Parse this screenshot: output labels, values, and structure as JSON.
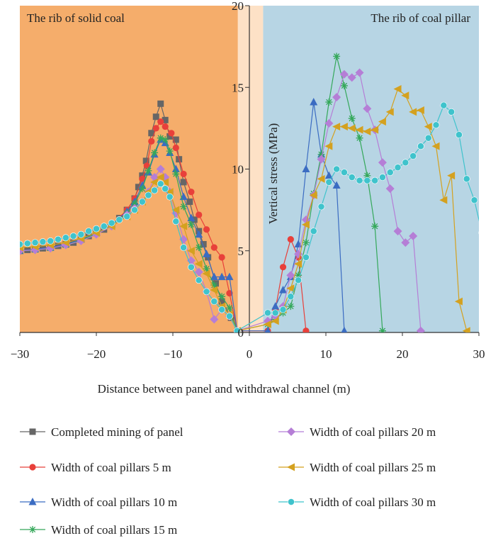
{
  "chart_data": {
    "type": "line",
    "title": "",
    "xlabel": "Distance between panel and withdrawal channel (m)",
    "ylabel": "Vertical stress (MPa)",
    "xlim": [
      -30,
      30
    ],
    "ylim": [
      0,
      20
    ],
    "xticks": [
      -30,
      -20,
      -10,
      0,
      10,
      20,
      30
    ],
    "yticks": [
      0,
      5,
      10,
      15,
      20
    ],
    "regions": [
      {
        "label": "The rib of solid coal",
        "x_range": [
          -30,
          -1.5
        ],
        "color": "#f5ad6b"
      },
      {
        "label": "",
        "x_range": [
          -1.5,
          1.8
        ],
        "color": "#fde1c6"
      },
      {
        "label": "The rib of coal pillar",
        "x_range": [
          1.8,
          30
        ],
        "color": "#b7d5e4"
      }
    ],
    "grid": false,
    "legend_position": "bottom, two columns",
    "series": [
      {
        "name": "Completed mining of panel",
        "color": "#666666",
        "marker": "square",
        "points": [
          [
            -30,
            5.0
          ],
          [
            -29,
            5.05
          ],
          [
            -28,
            5.1
          ],
          [
            -27,
            5.15
          ],
          [
            -26,
            5.2
          ],
          [
            -25,
            5.3
          ],
          [
            -24,
            5.4
          ],
          [
            -23,
            5.5
          ],
          [
            -22,
            5.7
          ],
          [
            -21,
            5.9
          ],
          [
            -20,
            6.1
          ],
          [
            -19,
            6.3
          ],
          [
            -18,
            6.6
          ],
          [
            -17,
            7.0
          ],
          [
            -16,
            7.5
          ],
          [
            -15,
            8.2
          ],
          [
            -14.5,
            8.9
          ],
          [
            -14,
            9.6
          ],
          [
            -13.5,
            10.5
          ],
          [
            -12.8,
            12.2
          ],
          [
            -12.2,
            13.2
          ],
          [
            -11.6,
            14.0
          ],
          [
            -11,
            13.0
          ],
          [
            -10.4,
            12.0
          ],
          [
            -9.6,
            11.8
          ],
          [
            -9.2,
            10.6
          ],
          [
            -8.6,
            9.2
          ],
          [
            -7.8,
            8.0
          ],
          [
            -7.2,
            6.9
          ],
          [
            -6.6,
            6.2
          ],
          [
            -6,
            5.4
          ],
          [
            -5.4,
            4.6
          ],
          [
            -4.4,
            3.0
          ],
          [
            -3.6,
            1.9
          ],
          [
            -2.4,
            0.9
          ],
          [
            -1.5,
            0.1
          ]
        ]
      },
      {
        "name": "Width of coal pillars 5 m",
        "color": "#e8403a",
        "marker": "circle",
        "points": [
          [
            -30,
            5.0
          ],
          [
            -28,
            5.1
          ],
          [
            -26,
            5.2
          ],
          [
            -24,
            5.4
          ],
          [
            -22,
            5.7
          ],
          [
            -20,
            6.1
          ],
          [
            -18,
            6.6
          ],
          [
            -16,
            7.5
          ],
          [
            -15,
            8.2
          ],
          [
            -14,
            9.4
          ],
          [
            -13.4,
            10.2
          ],
          [
            -12.8,
            11.7
          ],
          [
            -12.2,
            12.5
          ],
          [
            -11.6,
            12.9
          ],
          [
            -11,
            12.6
          ],
          [
            -10.2,
            12.2
          ],
          [
            -9.6,
            11.3
          ],
          [
            -8.6,
            9.7
          ],
          [
            -7.6,
            8.6
          ],
          [
            -6.6,
            7.2
          ],
          [
            -5.6,
            6.3
          ],
          [
            -4.6,
            5.2
          ],
          [
            -3.6,
            4.6
          ],
          [
            -2.6,
            2.4
          ],
          [
            -1.6,
            0.1
          ],
          [
            2.4,
            0.1
          ],
          [
            3.4,
            1.4
          ],
          [
            4.4,
            4.0
          ],
          [
            5.4,
            5.7
          ],
          [
            6.4,
            4.6
          ],
          [
            7.4,
            0.1
          ]
        ]
      },
      {
        "name": "Width of coal pillars 10 m",
        "color": "#3b6cc2",
        "marker": "triangle-up",
        "points": [
          [
            -30,
            5.0
          ],
          [
            -28,
            5.1
          ],
          [
            -26,
            5.2
          ],
          [
            -24,
            5.4
          ],
          [
            -22,
            5.7
          ],
          [
            -20,
            6.1
          ],
          [
            -18,
            6.6
          ],
          [
            -16,
            7.4
          ],
          [
            -15,
            8.0
          ],
          [
            -14,
            9.0
          ],
          [
            -13.2,
            9.8
          ],
          [
            -12.4,
            10.9
          ],
          [
            -11.6,
            11.8
          ],
          [
            -11,
            11.6
          ],
          [
            -10.4,
            11.0
          ],
          [
            -9.6,
            10.0
          ],
          [
            -8.6,
            8.3
          ],
          [
            -7.6,
            7.0
          ],
          [
            -6.6,
            6.0
          ],
          [
            -5.6,
            4.8
          ],
          [
            -4.6,
            3.4
          ],
          [
            -3.6,
            3.4
          ],
          [
            -2.6,
            3.4
          ],
          [
            -1.6,
            0.1
          ],
          [
            2.4,
            0.1
          ],
          [
            3.4,
            1.6
          ],
          [
            4.4,
            2.6
          ],
          [
            5.4,
            3.4
          ],
          [
            6.4,
            5.4
          ],
          [
            7.4,
            10.0
          ],
          [
            8.4,
            14.1
          ],
          [
            9.4,
            10.9
          ],
          [
            10.4,
            9.6
          ],
          [
            11.4,
            9.0
          ],
          [
            12.4,
            0.1
          ]
        ]
      },
      {
        "name": "Width of coal pillars 15 m",
        "color": "#34a85a",
        "marker": "asterisk",
        "points": [
          [
            -30,
            5.0
          ],
          [
            -28,
            5.05
          ],
          [
            -26,
            5.15
          ],
          [
            -24,
            5.35
          ],
          [
            -22,
            5.65
          ],
          [
            -20,
            6.05
          ],
          [
            -18,
            6.55
          ],
          [
            -16,
            7.3
          ],
          [
            -15,
            7.9
          ],
          [
            -14,
            8.8
          ],
          [
            -13.2,
            9.9
          ],
          [
            -12.4,
            11.0
          ],
          [
            -11.6,
            11.9
          ],
          [
            -11,
            11.8
          ],
          [
            -10.4,
            11.1
          ],
          [
            -9.6,
            9.7
          ],
          [
            -8.6,
            7.7
          ],
          [
            -7.6,
            6.6
          ],
          [
            -6.6,
            5.2
          ],
          [
            -5.6,
            3.9
          ],
          [
            -4.6,
            2.9
          ],
          [
            -3.6,
            2.2
          ],
          [
            -2.6,
            1.5
          ],
          [
            -1.6,
            0.1
          ],
          [
            2.4,
            0.5
          ],
          [
            3.4,
            0.8
          ],
          [
            4.4,
            1.2
          ],
          [
            5.4,
            1.6
          ],
          [
            6.4,
            3.5
          ],
          [
            7.4,
            5.5
          ],
          [
            8.4,
            8.5
          ],
          [
            9.4,
            10.9
          ],
          [
            10.4,
            14.1
          ],
          [
            11.4,
            16.9
          ],
          [
            12.4,
            15.1
          ],
          [
            13.4,
            13.1
          ],
          [
            14.4,
            11.9
          ],
          [
            15.4,
            9.6
          ],
          [
            16.4,
            6.5
          ],
          [
            17.4,
            0.1
          ]
        ]
      },
      {
        "name": "Width of coal pillars 20 m",
        "color": "#b57ed6",
        "marker": "diamond",
        "points": [
          [
            -30,
            5.0
          ],
          [
            -28,
            5.05
          ],
          [
            -26,
            5.15
          ],
          [
            -24,
            5.35
          ],
          [
            -22,
            5.6
          ],
          [
            -20,
            6.0
          ],
          [
            -18,
            6.5
          ],
          [
            -16,
            7.2
          ],
          [
            -15,
            7.6
          ],
          [
            -14,
            8.0
          ],
          [
            -13.2,
            8.6
          ],
          [
            -12.4,
            9.5
          ],
          [
            -11.6,
            10.0
          ],
          [
            -11,
            9.5
          ],
          [
            -10.4,
            8.6
          ],
          [
            -9.6,
            7.3
          ],
          [
            -8.6,
            5.7
          ],
          [
            -7.6,
            4.4
          ],
          [
            -6.6,
            3.7
          ],
          [
            -5.6,
            2.5
          ],
          [
            -4.6,
            0.8
          ],
          [
            -3.6,
            1.4
          ],
          [
            -2.6,
            1.0
          ],
          [
            -1.6,
            0.1
          ],
          [
            2.4,
            0.7
          ],
          [
            3.4,
            1.0
          ],
          [
            4.4,
            1.6
          ],
          [
            5.4,
            3.5
          ],
          [
            6.4,
            4.8
          ],
          [
            7.4,
            6.9
          ],
          [
            8.4,
            8.4
          ],
          [
            9.4,
            10.6
          ],
          [
            10.4,
            12.8
          ],
          [
            11.4,
            14.4
          ],
          [
            12.4,
            15.8
          ],
          [
            13.4,
            15.6
          ],
          [
            14.4,
            15.9
          ],
          [
            15.4,
            13.7
          ],
          [
            16.4,
            12.4
          ],
          [
            17.4,
            10.4
          ],
          [
            18.4,
            8.8
          ],
          [
            19.4,
            6.2
          ],
          [
            20.4,
            5.5
          ],
          [
            21.4,
            5.9
          ],
          [
            22.4,
            0.1
          ]
        ]
      },
      {
        "name": "Width of coal pillars 25 m",
        "color": "#d4a11f",
        "marker": "triangle-left",
        "points": [
          [
            -30,
            5.2
          ],
          [
            -28,
            5.25
          ],
          [
            -26,
            5.35
          ],
          [
            -24,
            5.5
          ],
          [
            -22,
            5.75
          ],
          [
            -20,
            6.1
          ],
          [
            -18,
            6.5
          ],
          [
            -16,
            7.1
          ],
          [
            -15,
            7.5
          ],
          [
            -14,
            8.0
          ],
          [
            -13.2,
            8.6
          ],
          [
            -12.4,
            9.2
          ],
          [
            -11.6,
            9.5
          ],
          [
            -11,
            9.2
          ],
          [
            -10.4,
            8.6
          ],
          [
            -9.6,
            7.5
          ],
          [
            -8.6,
            6.5
          ],
          [
            -7.6,
            5.0
          ],
          [
            -6.6,
            4.2
          ],
          [
            -5.6,
            3.6
          ],
          [
            -4.6,
            2.6
          ],
          [
            -3.6,
            1.6
          ],
          [
            -2.6,
            1.1
          ],
          [
            -1.6,
            0.1
          ],
          [
            2.4,
            0.5
          ],
          [
            3.4,
            0.7
          ],
          [
            4.4,
            1.4
          ],
          [
            5.4,
            2.7
          ],
          [
            6.4,
            4.2
          ],
          [
            7.4,
            6.6
          ],
          [
            8.4,
            8.4
          ],
          [
            9.4,
            9.4
          ],
          [
            10.4,
            11.4
          ],
          [
            11.4,
            12.6
          ],
          [
            12.4,
            12.6
          ],
          [
            13.4,
            12.5
          ],
          [
            14.4,
            12.4
          ],
          [
            15.4,
            12.3
          ],
          [
            16.4,
            12.4
          ],
          [
            17.4,
            12.9
          ],
          [
            18.4,
            13.5
          ],
          [
            19.4,
            14.9
          ],
          [
            20.4,
            14.5
          ],
          [
            21.4,
            13.5
          ],
          [
            22.4,
            13.6
          ],
          [
            23.4,
            12.6
          ],
          [
            24.4,
            11.4
          ],
          [
            25.4,
            8.1
          ],
          [
            26.4,
            9.6
          ],
          [
            27.4,
            1.9
          ],
          [
            28.4,
            0.1
          ]
        ]
      },
      {
        "name": "Width of coal pillars 30 m",
        "color": "#3fc3cc",
        "marker": "circle",
        "points": [
          [
            -30,
            5.4
          ],
          [
            -29,
            5.45
          ],
          [
            -28,
            5.5
          ],
          [
            -27,
            5.55
          ],
          [
            -26,
            5.6
          ],
          [
            -25,
            5.7
          ],
          [
            -24,
            5.8
          ],
          [
            -23,
            5.9
          ],
          [
            -22,
            6.0
          ],
          [
            -21,
            6.2
          ],
          [
            -20,
            6.35
          ],
          [
            -19,
            6.5
          ],
          [
            -18,
            6.7
          ],
          [
            -17,
            6.9
          ],
          [
            -16,
            7.1
          ],
          [
            -15,
            7.5
          ],
          [
            -14,
            8.0
          ],
          [
            -13.2,
            8.4
          ],
          [
            -12.4,
            8.7
          ],
          [
            -11.6,
            9.1
          ],
          [
            -11,
            8.8
          ],
          [
            -10.4,
            8.3
          ],
          [
            -9.6,
            6.8
          ],
          [
            -8.6,
            5.2
          ],
          [
            -7.6,
            4.0
          ],
          [
            -6.6,
            3.2
          ],
          [
            -5.6,
            2.5
          ],
          [
            -4.6,
            1.9
          ],
          [
            -3.6,
            1.4
          ],
          [
            -2.6,
            1.0
          ],
          [
            -1.6,
            0.1
          ],
          [
            2.4,
            1.2
          ],
          [
            3.4,
            1.2
          ],
          [
            4.4,
            1.4
          ],
          [
            5.4,
            2.2
          ],
          [
            6.4,
            3.2
          ],
          [
            7.4,
            4.6
          ],
          [
            8.4,
            6.2
          ],
          [
            9.4,
            7.7
          ],
          [
            10.4,
            9.2
          ],
          [
            11.4,
            10.0
          ],
          [
            12.4,
            9.8
          ],
          [
            13.4,
            9.5
          ],
          [
            14.4,
            9.3
          ],
          [
            15.4,
            9.3
          ],
          [
            16.4,
            9.3
          ],
          [
            17.4,
            9.5
          ],
          [
            18.4,
            9.8
          ],
          [
            19.4,
            10.1
          ],
          [
            20.4,
            10.4
          ],
          [
            21.4,
            10.8
          ],
          [
            22.4,
            11.4
          ],
          [
            23.4,
            11.9
          ],
          [
            24.4,
            12.7
          ],
          [
            25.4,
            13.9
          ],
          [
            26.4,
            13.5
          ],
          [
            27.4,
            12.1
          ],
          [
            28.4,
            9.4
          ],
          [
            29.4,
            8.1
          ],
          [
            30.4,
            6.1
          ]
        ]
      }
    ]
  }
}
